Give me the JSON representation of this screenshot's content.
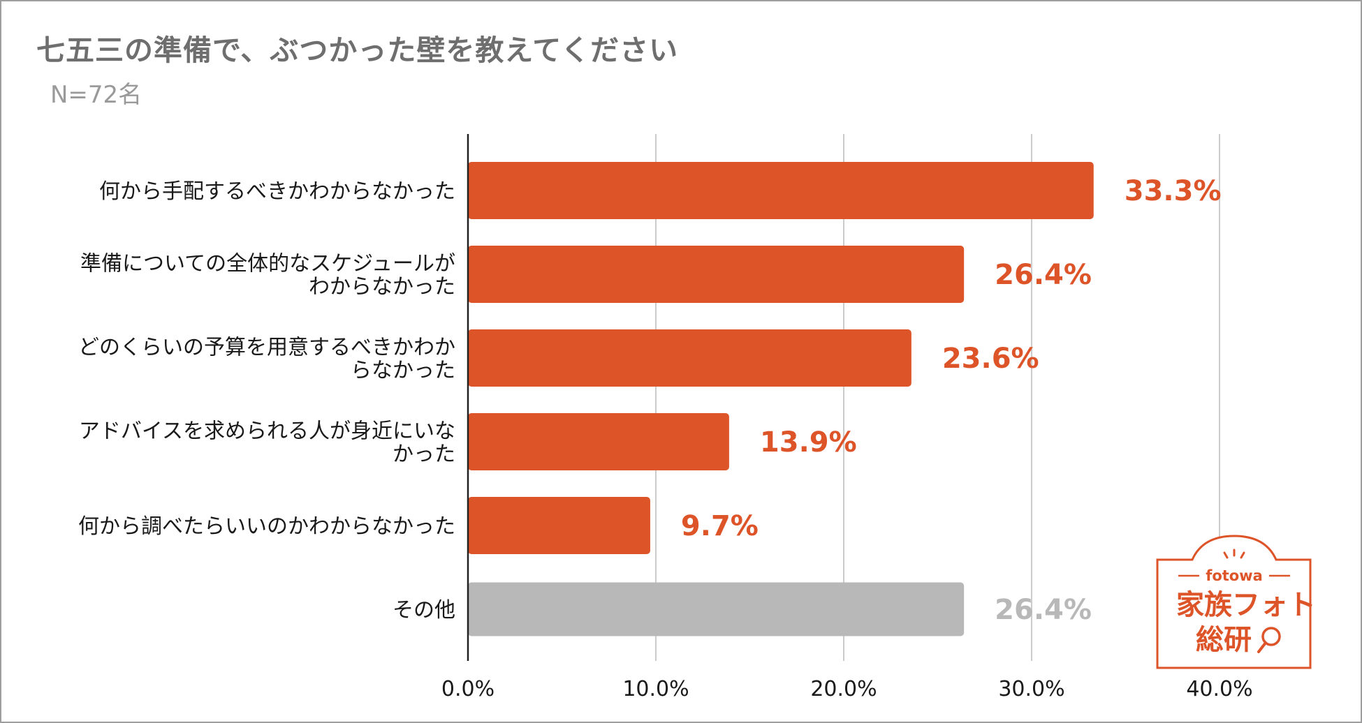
{
  "header": {
    "title": "七五三の準備で、ぶつかった壁を教えてください",
    "subtitle": "N=72名"
  },
  "colors": {
    "accent": "#dd5429",
    "other": "#b8b8b8",
    "grid": "#cccccc",
    "axis": "#222222"
  },
  "chart_data": {
    "type": "bar",
    "orientation": "horizontal",
    "title": "七五三の準備で、ぶつかった壁を教えてください",
    "subtitle": "N=72名",
    "categories": [
      [
        "何から手配するべきかわからなかった"
      ],
      [
        "準備についての全体的なスケジュールが",
        "わからなかった"
      ],
      [
        "どのくらいの予算を用意するべきかわか",
        "らなかった"
      ],
      [
        "アドバイスを求められる人が身近にいな",
        "かった"
      ],
      [
        "何から調べたらいいのかわからなかった"
      ],
      [
        "その他"
      ]
    ],
    "values": [
      33.3,
      26.4,
      23.6,
      13.9,
      9.7,
      26.4
    ],
    "value_labels": [
      "33.3%",
      "26.4%",
      "23.6%",
      "13.9%",
      "9.7%",
      "26.4%"
    ],
    "bar_colors": [
      "accent",
      "accent",
      "accent",
      "accent",
      "accent",
      "other"
    ],
    "xlim": [
      0,
      40
    ],
    "xticks": [
      0,
      10,
      20,
      30,
      40
    ],
    "xtick_labels": [
      "0.0%",
      "10.0%",
      "20.0%",
      "30.0%",
      "40.0%"
    ],
    "grid": true
  },
  "logo": {
    "brand": "fotowa",
    "name_line1": "家族フォト",
    "name_line2": "総研"
  }
}
